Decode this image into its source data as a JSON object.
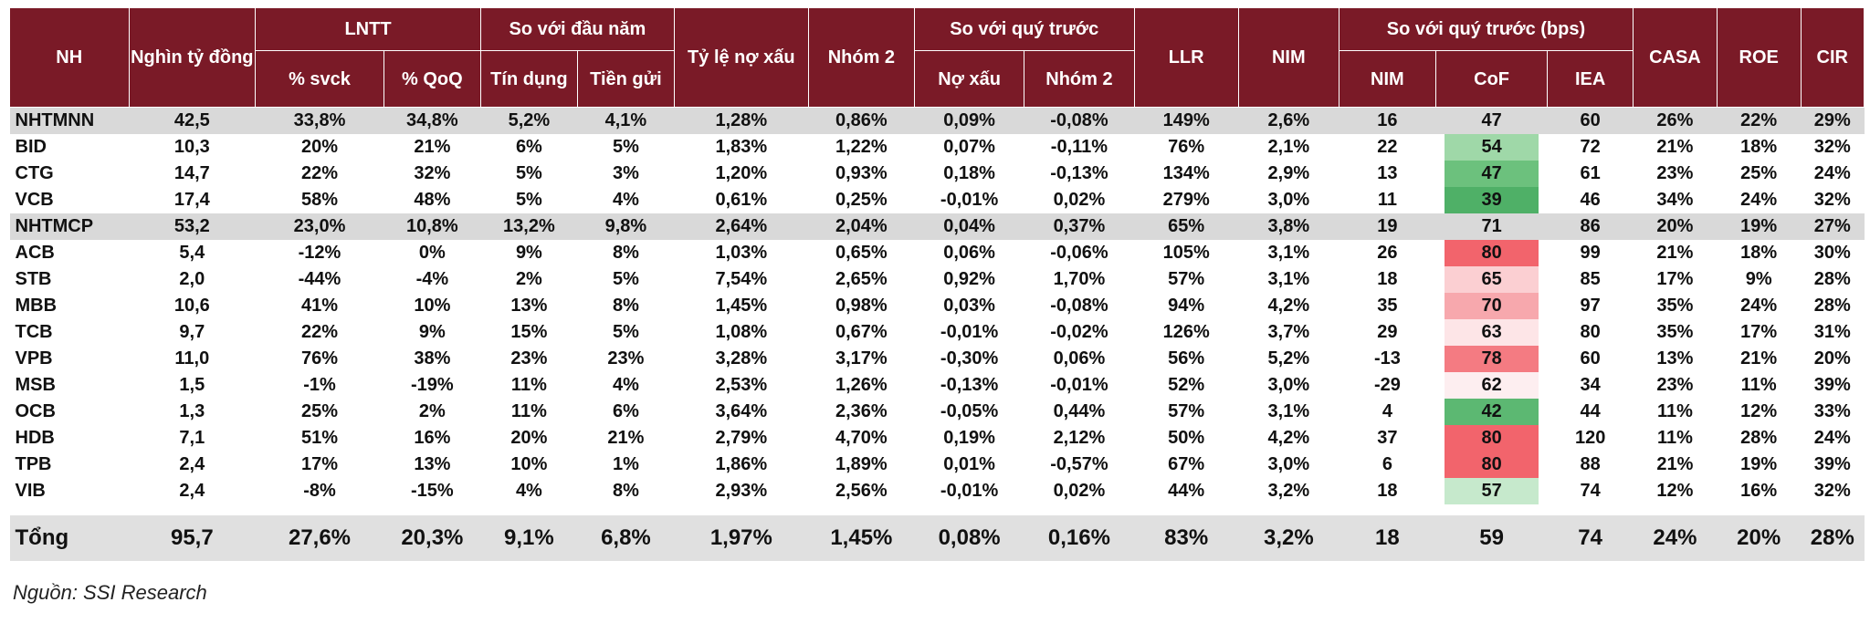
{
  "chart_data": {
    "type": "table",
    "header_groups": [
      {
        "label": "NH"
      },
      {
        "label": "Nghìn tỷ đồng"
      },
      {
        "label": "LNTT",
        "subs": [
          "% svck",
          "% QoQ"
        ]
      },
      {
        "label": "So với đầu năm",
        "subs": [
          "Tín dụng",
          "Tiền gửi"
        ]
      },
      {
        "label": "Tỷ lệ nợ xấu"
      },
      {
        "label": "Nhóm 2"
      },
      {
        "label": "So với quý trước",
        "subs": [
          "Nợ xấu",
          "Nhóm 2"
        ]
      },
      {
        "label": "LLR"
      },
      {
        "label": "NIM"
      },
      {
        "label": "So với quý trước (bps)",
        "subs": [
          "NIM",
          "CoF",
          "IEA"
        ]
      },
      {
        "label": "CASA"
      },
      {
        "label": "ROE"
      },
      {
        "label": "CIR"
      }
    ],
    "rows": [
      {
        "type": "group",
        "cells": [
          "NHTMNN",
          "42,5",
          "33,8%",
          "34,8%",
          "5,2%",
          "4,1%",
          "1,28%",
          "0,86%",
          "0,09%",
          "-0,08%",
          "149%",
          "2,6%",
          "16",
          "47",
          "60",
          "26%",
          "22%",
          "29%"
        ],
        "cof_color": ""
      },
      {
        "type": "bank",
        "cells": [
          "BID",
          "10,3",
          "20%",
          "21%",
          "6%",
          "5%",
          "1,83%",
          "1,22%",
          "0,07%",
          "-0,11%",
          "76%",
          "2,1%",
          "22",
          "54",
          "72",
          "21%",
          "18%",
          "32%"
        ],
        "cof_color": "#9fd8a8"
      },
      {
        "type": "bank",
        "cells": [
          "CTG",
          "14,7",
          "22%",
          "32%",
          "5%",
          "3%",
          "1,20%",
          "0,93%",
          "0,18%",
          "-0,13%",
          "134%",
          "2,9%",
          "13",
          "47",
          "61",
          "23%",
          "25%",
          "24%"
        ],
        "cof_color": "#6cc17d"
      },
      {
        "type": "bank",
        "cells": [
          "VCB",
          "17,4",
          "58%",
          "48%",
          "5%",
          "4%",
          "0,61%",
          "0,25%",
          "-0,01%",
          "0,02%",
          "279%",
          "3,0%",
          "11",
          "39",
          "46",
          "34%",
          "24%",
          "32%"
        ],
        "cof_color": "#4fb067"
      },
      {
        "type": "group",
        "cells": [
          "NHTMCP",
          "53,2",
          "23,0%",
          "10,8%",
          "13,2%",
          "9,8%",
          "2,64%",
          "2,04%",
          "0,04%",
          "0,37%",
          "65%",
          "3,8%",
          "19",
          "71",
          "86",
          "20%",
          "19%",
          "27%"
        ],
        "cof_color": ""
      },
      {
        "type": "bank",
        "cells": [
          "ACB",
          "5,4",
          "-12%",
          "0%",
          "9%",
          "8%",
          "1,03%",
          "0,65%",
          "0,06%",
          "-0,06%",
          "105%",
          "3,1%",
          "26",
          "80",
          "99",
          "21%",
          "18%",
          "30%"
        ],
        "cof_color": "#f2646c"
      },
      {
        "type": "bank",
        "cells": [
          "STB",
          "2,0",
          "-44%",
          "-4%",
          "2%",
          "5%",
          "7,54%",
          "2,65%",
          "0,92%",
          "1,70%",
          "57%",
          "3,1%",
          "18",
          "65",
          "85",
          "17%",
          "9%",
          "28%"
        ],
        "cof_color": "#fbcfd2"
      },
      {
        "type": "bank",
        "cells": [
          "MBB",
          "10,6",
          "41%",
          "10%",
          "13%",
          "8%",
          "1,45%",
          "0,98%",
          "0,03%",
          "-0,08%",
          "94%",
          "4,2%",
          "35",
          "70",
          "97",
          "35%",
          "24%",
          "28%"
        ],
        "cof_color": "#f7a8ad"
      },
      {
        "type": "bank",
        "cells": [
          "TCB",
          "9,7",
          "22%",
          "9%",
          "15%",
          "5%",
          "1,08%",
          "0,67%",
          "-0,01%",
          "-0,02%",
          "126%",
          "3,7%",
          "29",
          "63",
          "80",
          "35%",
          "17%",
          "31%"
        ],
        "cof_color": "#fde5e7"
      },
      {
        "type": "bank",
        "cells": [
          "VPB",
          "11,0",
          "76%",
          "38%",
          "23%",
          "23%",
          "3,28%",
          "3,17%",
          "-0,30%",
          "0,06%",
          "56%",
          "5,2%",
          "-13",
          "78",
          "60",
          "13%",
          "21%",
          "20%"
        ],
        "cof_color": "#f47b82"
      },
      {
        "type": "bank",
        "cells": [
          "MSB",
          "1,5",
          "-1%",
          "-19%",
          "11%",
          "4%",
          "2,53%",
          "1,26%",
          "-0,13%",
          "-0,01%",
          "52%",
          "3,0%",
          "-29",
          "62",
          "34",
          "23%",
          "11%",
          "39%"
        ],
        "cof_color": "#fdeef0"
      },
      {
        "type": "bank",
        "cells": [
          "OCB",
          "1,3",
          "25%",
          "2%",
          "11%",
          "6%",
          "3,64%",
          "2,36%",
          "-0,05%",
          "0,44%",
          "57%",
          "3,1%",
          "4",
          "42",
          "44",
          "11%",
          "12%",
          "33%"
        ],
        "cof_color": "#5cb872"
      },
      {
        "type": "bank",
        "cells": [
          "HDB",
          "7,1",
          "51%",
          "16%",
          "20%",
          "21%",
          "2,79%",
          "4,70%",
          "0,19%",
          "2,12%",
          "50%",
          "4,2%",
          "37",
          "80",
          "120",
          "11%",
          "28%",
          "24%"
        ],
        "cof_color": "#f2646c"
      },
      {
        "type": "bank",
        "cells": [
          "TPB",
          "2,4",
          "17%",
          "13%",
          "10%",
          "1%",
          "1,86%",
          "1,89%",
          "0,01%",
          "-0,57%",
          "67%",
          "3,0%",
          "6",
          "80",
          "88",
          "21%",
          "19%",
          "39%"
        ],
        "cof_color": "#f2646c"
      },
      {
        "type": "bank",
        "cells": [
          "VIB",
          "2,4",
          "-8%",
          "-15%",
          "4%",
          "8%",
          "2,93%",
          "2,56%",
          "-0,01%",
          "0,02%",
          "44%",
          "3,2%",
          "18",
          "57",
          "74",
          "12%",
          "16%",
          "32%"
        ],
        "cof_color": "#c6e9cc"
      }
    ],
    "total": {
      "cells": [
        "Tổng",
        "95,7",
        "27,6%",
        "20,3%",
        "9,1%",
        "6,8%",
        "1,97%",
        "1,45%",
        "0,08%",
        "0,16%",
        "83%",
        "3,2%",
        "18",
        "59",
        "74",
        "24%",
        "20%",
        "28%"
      ]
    }
  },
  "source": "Nguồn: SSI Research",
  "colors": {
    "header_bg": "#7a1a27",
    "group_row_bg": "#d9d9d9",
    "total_row_bg": "#e0e0e0"
  }
}
